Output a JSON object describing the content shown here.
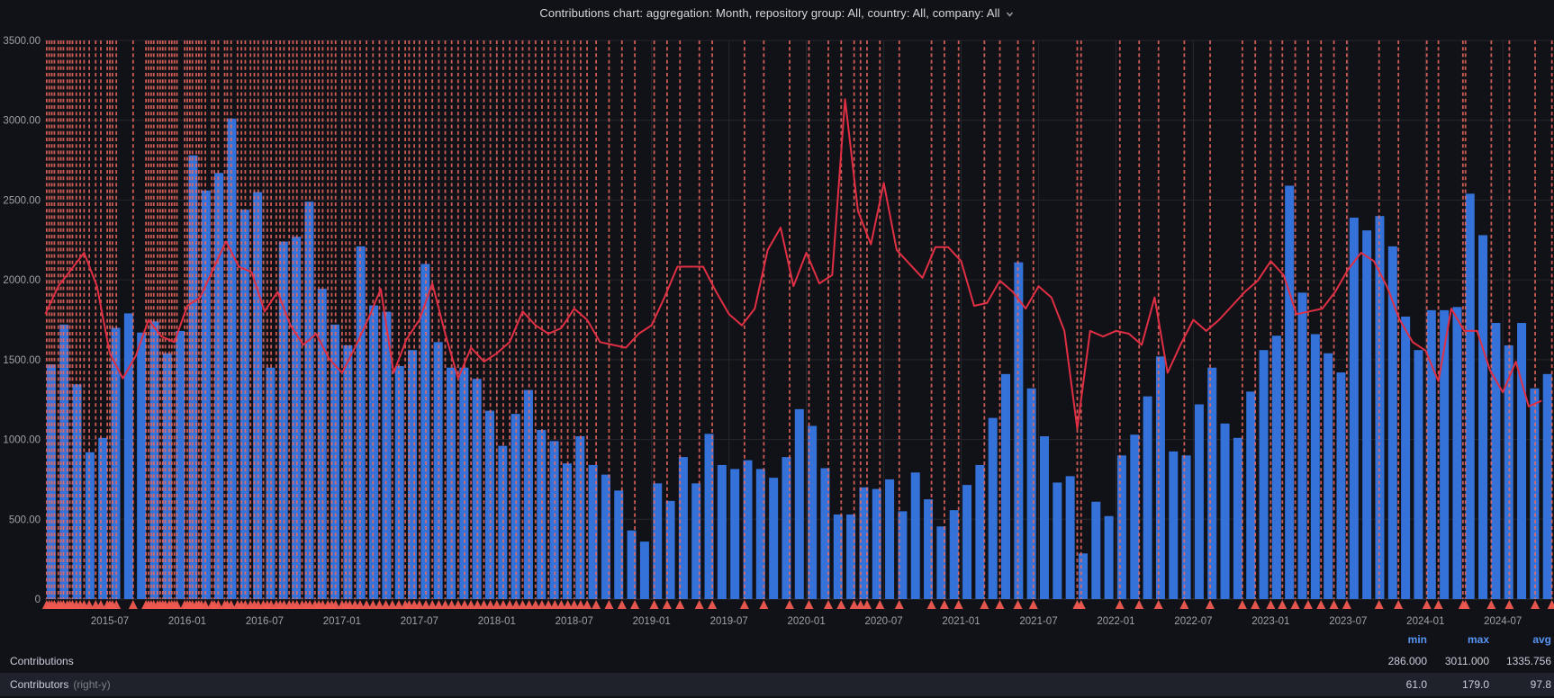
{
  "header": {
    "title": "Contributions chart: aggregation: Month, repository group: All, country: All, company: All"
  },
  "legend": {
    "columns": [
      "min",
      "max",
      "avg"
    ],
    "rows": [
      {
        "label": "Contributions",
        "axis_note": "",
        "min": "286.000",
        "max": "3011.000",
        "avg": "1335.756"
      },
      {
        "label": "Contributors",
        "axis_note": "(right-y)",
        "min": "61.0",
        "max": "179.0",
        "avg": "97.8"
      }
    ]
  },
  "colors": {
    "panel_bg": "#111217",
    "bar": "#3472d9",
    "line": "#e02f44",
    "annotation": "#ef6a5f",
    "triangle": "#ef5a50",
    "grid": "#25272d",
    "axis_line": "#2e3138",
    "axis_text": "#9da1a8",
    "title_text": "#d8d9da",
    "chevron": "#9aa0ab",
    "legend_text": "#ccccdc",
    "legend_dim": "#7b8089",
    "legend_header": "#5794f2",
    "row_highlight": "#1f222a"
  },
  "chart_data": {
    "type": "bar",
    "title": "Contributions chart: aggregation: Month, repository group: All, country: All, company: All",
    "xlabel": "",
    "ylabel": "",
    "grid": true,
    "legend_position": "bottom-table",
    "left_axis": {
      "min": 0,
      "max": 3500,
      "tick_step": 500,
      "tick_labels": [
        "3500.00",
        "3000.00",
        "2500.00",
        "2000.00",
        "1500.00",
        "1000.00",
        "500.00",
        "0"
      ],
      "tick_values": [
        3500,
        3000,
        2500,
        2000,
        1500,
        1000,
        500,
        0
      ]
    },
    "right_axis": {
      "min": 0,
      "max": 200,
      "labels_shown": false
    },
    "x_tick_labels": [
      "2015-07",
      "2016-01",
      "2016-07",
      "2017-01",
      "2017-07",
      "2018-01",
      "2018-07",
      "2019-01",
      "2019-07",
      "2020-01",
      "2020-07",
      "2021-01",
      "2021-07",
      "2022-01",
      "2022-07",
      "2023-01",
      "2023-07",
      "2024-01",
      "2024-07"
    ],
    "categories": [
      "2015-02",
      "2015-03",
      "2015-04",
      "2015-05",
      "2015-06",
      "2015-07",
      "2015-08",
      "2015-09",
      "2015-10",
      "2015-11",
      "2015-12",
      "2016-01",
      "2016-02",
      "2016-03",
      "2016-04",
      "2016-05",
      "2016-06",
      "2016-07",
      "2016-08",
      "2016-09",
      "2016-10",
      "2016-11",
      "2016-12",
      "2017-01",
      "2017-02",
      "2017-03",
      "2017-04",
      "2017-05",
      "2017-06",
      "2017-07",
      "2017-08",
      "2017-09",
      "2017-10",
      "2017-11",
      "2017-12",
      "2018-01",
      "2018-02",
      "2018-03",
      "2018-04",
      "2018-05",
      "2018-06",
      "2018-07",
      "2018-08",
      "2018-09",
      "2018-10",
      "2018-11",
      "2018-12",
      "2019-01",
      "2019-02",
      "2019-03",
      "2019-04",
      "2019-05",
      "2019-06",
      "2019-07",
      "2019-08",
      "2019-09",
      "2019-10",
      "2019-11",
      "2019-12",
      "2020-01",
      "2020-02",
      "2020-03",
      "2020-04",
      "2020-05",
      "2020-06",
      "2020-07",
      "2020-08",
      "2020-09",
      "2020-10",
      "2020-11",
      "2020-12",
      "2021-01",
      "2021-02",
      "2021-03",
      "2021-04",
      "2021-05",
      "2021-06",
      "2021-07",
      "2021-08",
      "2021-09",
      "2021-10",
      "2021-11",
      "2021-12",
      "2022-01",
      "2022-02",
      "2022-03",
      "2022-04",
      "2022-05",
      "2022-06",
      "2022-07",
      "2022-08",
      "2022-09",
      "2022-10",
      "2022-11",
      "2022-12",
      "2023-01",
      "2023-02",
      "2023-03",
      "2023-04",
      "2023-05",
      "2023-06",
      "2023-07",
      "2023-08",
      "2023-09",
      "2023-10",
      "2023-11",
      "2023-12",
      "2024-01",
      "2024-02",
      "2024-03",
      "2024-04",
      "2024-05",
      "2024-06",
      "2024-07",
      "2024-08",
      "2024-09",
      "2024-10"
    ],
    "series": [
      {
        "name": "Contributions",
        "type": "bar",
        "axis": "left",
        "color": "#3472d9",
        "values": [
          1470,
          1720,
          1345,
          920,
          1010,
          1700,
          1790,
          1670,
          1740,
          1540,
          1680,
          2780,
          2560,
          2670,
          3011,
          2440,
          2550,
          1450,
          2240,
          2270,
          2490,
          1945,
          1720,
          1590,
          2210,
          1840,
          1800,
          1460,
          1560,
          2100,
          1610,
          1450,
          1450,
          1380,
          1180,
          960,
          1160,
          1310,
          1060,
          990,
          850,
          1020,
          840,
          780,
          680,
          430,
          360,
          725,
          615,
          890,
          725,
          1035,
          840,
          815,
          870,
          815,
          760,
          890,
          1190,
          1085,
          820,
          530,
          530,
          700,
          690,
          750,
          550,
          793,
          625,
          455,
          557,
          715,
          840,
          1135,
          1410,
          2110,
          1320,
          1020,
          730,
          770,
          286,
          610,
          520,
          900,
          1030,
          1270,
          1520,
          925,
          900,
          1220,
          1450,
          1100,
          1010,
          1300,
          1560,
          1650,
          2590,
          1920,
          1660,
          1540,
          1420,
          2390,
          2310,
          2400,
          2210,
          1770,
          1560,
          1810,
          1810,
          1830,
          2540,
          2280,
          1730,
          1590,
          1730,
          1320,
          1410
        ],
        "min": 286,
        "max": 3011,
        "avg": 1335.756
      },
      {
        "name": "Contributors",
        "type": "line",
        "axis": "right",
        "color": "#e02f44",
        "values": [
          102,
          112,
          118,
          124,
          112,
          88,
          79,
          87,
          100,
          94,
          92,
          105,
          108,
          118,
          128,
          119,
          117,
          103,
          110,
          98,
          91,
          95,
          86,
          81,
          90,
          100,
          111,
          81,
          93,
          100,
          113,
          95,
          79,
          90,
          85,
          88,
          92,
          103,
          98,
          95,
          97,
          104,
          100,
          92,
          91,
          90,
          95,
          98,
          108,
          119,
          119,
          119,
          110,
          102,
          98,
          104,
          125,
          133,
          112,
          124,
          113,
          116,
          179,
          139,
          127,
          149,
          125,
          120,
          115,
          126,
          126,
          121,
          105,
          106,
          114,
          110,
          104,
          112,
          108,
          96,
          61,
          96,
          94,
          96,
          95,
          91,
          108,
          81,
          91,
          100,
          96,
          100,
          105,
          110,
          114,
          121,
          116,
          102,
          103,
          104,
          110,
          118,
          124,
          121,
          112,
          100,
          92,
          89,
          78,
          104,
          96,
          96,
          82,
          74,
          85,
          69,
          71
        ],
        "min": 61,
        "max": 179,
        "avg": 97.8
      }
    ],
    "annotations_months": [
      0.1,
      0.3,
      0.5,
      0.7,
      1.0,
      1.2,
      1.4,
      1.7,
      1.9,
      2.1,
      2.4,
      2.7,
      3.0,
      3.4,
      3.9,
      4.3,
      4.8,
      5.0,
      5.2,
      5.5,
      6.8,
      7.8,
      8.0,
      8.2,
      8.4,
      8.7,
      8.9,
      9.1,
      9.3,
      9.6,
      9.8,
      10.0,
      10.2,
      10.8,
      11.0,
      11.2,
      11.4,
      11.7,
      11.9,
      12.1,
      12.4,
      12.9,
      13.1,
      13.4,
      13.9,
      14.1,
      14.4,
      14.9,
      15.2,
      15.5,
      15.9,
      16.2,
      16.5,
      16.9,
      17.2,
      17.5,
      17.9,
      18.2,
      18.5,
      18.9,
      19.2,
      19.5,
      19.9,
      20.2,
      20.5,
      20.9,
      21.2,
      21.5,
      21.9,
      22.2,
      22.5,
      23.0,
      23.3,
      23.6,
      24.0,
      24.4,
      24.9,
      25.4,
      25.9,
      26.4,
      26.9,
      27.4,
      27.9,
      28.2,
      28.6,
      29.0,
      29.5,
      30.0,
      30.5,
      31.0,
      31.5,
      32.0,
      32.5,
      33.0,
      33.5,
      34.0,
      34.5,
      35.0,
      35.5,
      36.0,
      36.5,
      37.0,
      37.5,
      38.0,
      38.5,
      39.0,
      39.5,
      40.0,
      40.5,
      41.0,
      41.5,
      42.0,
      42.7,
      43.7,
      44.7,
      45.7,
      47.2,
      48.2,
      49.2,
      50.7,
      51.7,
      54.2,
      55.7,
      57.7,
      59.2,
      60.7,
      61.7,
      62.7,
      63.2,
      63.7,
      64.7,
      66.2,
      68.7,
      69.7,
      70.8,
      72.8,
      74.0,
      75.4,
      76.6,
      80.0,
      80.3,
      83.3,
      84.8,
      86.3,
      88.3,
      90.3,
      92.8,
      93.8,
      95.0,
      95.9,
      96.9,
      97.9,
      98.9,
      99.9,
      100.9,
      103.4,
      104.9,
      107.1,
      108.0,
      109.9,
      110.1,
      112.1,
      113.5,
      115.5,
      116.8
    ]
  }
}
